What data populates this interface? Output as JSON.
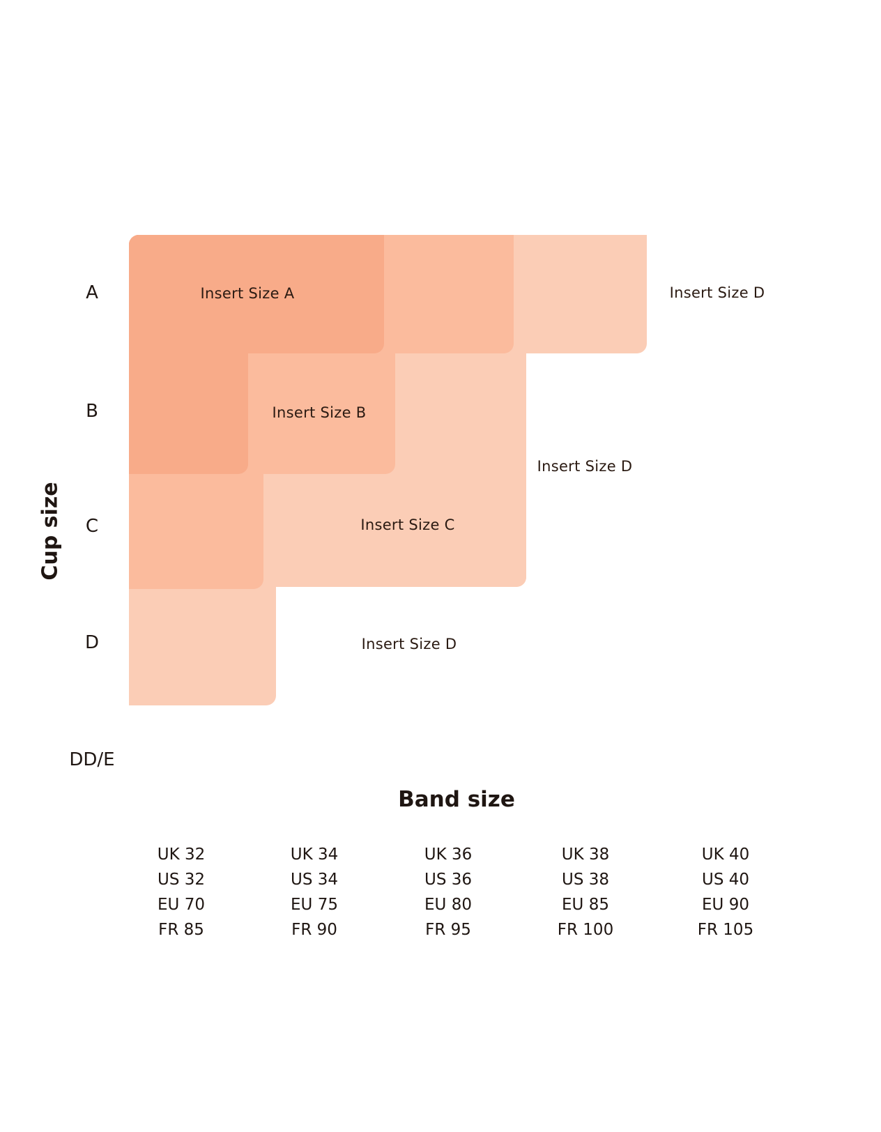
{
  "cup_axis": {
    "title": "Cup size",
    "sizes": [
      "A",
      "B",
      "C",
      "D",
      "DD/E"
    ]
  },
  "band_axis": {
    "title": "Band size",
    "columns": [
      [
        "UK 32",
        "US 32",
        "EU 70",
        "FR 85"
      ],
      [
        "UK 34",
        "US 34",
        "EU 75",
        "FR 90"
      ],
      [
        "UK 36",
        "US 36",
        "EU 80",
        "FR 95"
      ],
      [
        "UK 38",
        "US 38",
        "EU 85",
        "FR 100"
      ],
      [
        "UK 40",
        "US 40",
        "EU 90",
        "FR 105"
      ]
    ]
  },
  "inserts": {
    "a": "Insert Size A",
    "b": "Insert Size B",
    "c": "Insert Size C",
    "d_top": "Insert Size D",
    "d_mid": "Insert Size D",
    "d_bottom": "Insert Size D"
  },
  "colors": {
    "size_a": "#f8ab89",
    "size_b": "#fbbb9d",
    "size_c": "#fbcdb6",
    "size_d": "#ffffff"
  }
}
